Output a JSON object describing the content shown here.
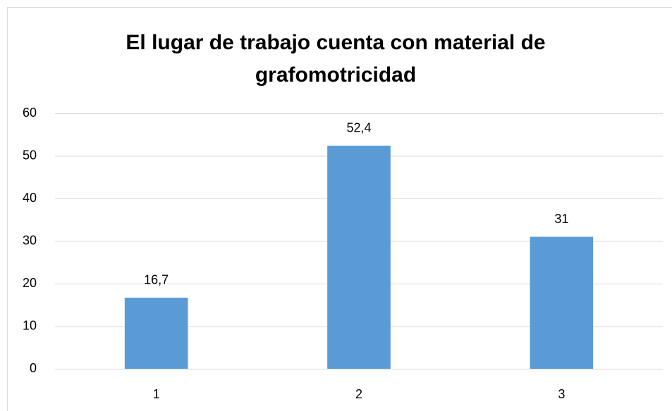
{
  "chart_data": {
    "type": "bar",
    "title": "El lugar de trabajo cuenta con material de grafomotricidad",
    "categories": [
      "1",
      "2",
      "3"
    ],
    "values": [
      16.7,
      52.4,
      31
    ],
    "value_labels": [
      "16,7",
      "52,4",
      "31"
    ],
    "color": "#5b9bd5",
    "ylim": [
      0,
      60
    ],
    "yticks": [
      0,
      10,
      20,
      30,
      40,
      50,
      60
    ],
    "grid": true
  }
}
